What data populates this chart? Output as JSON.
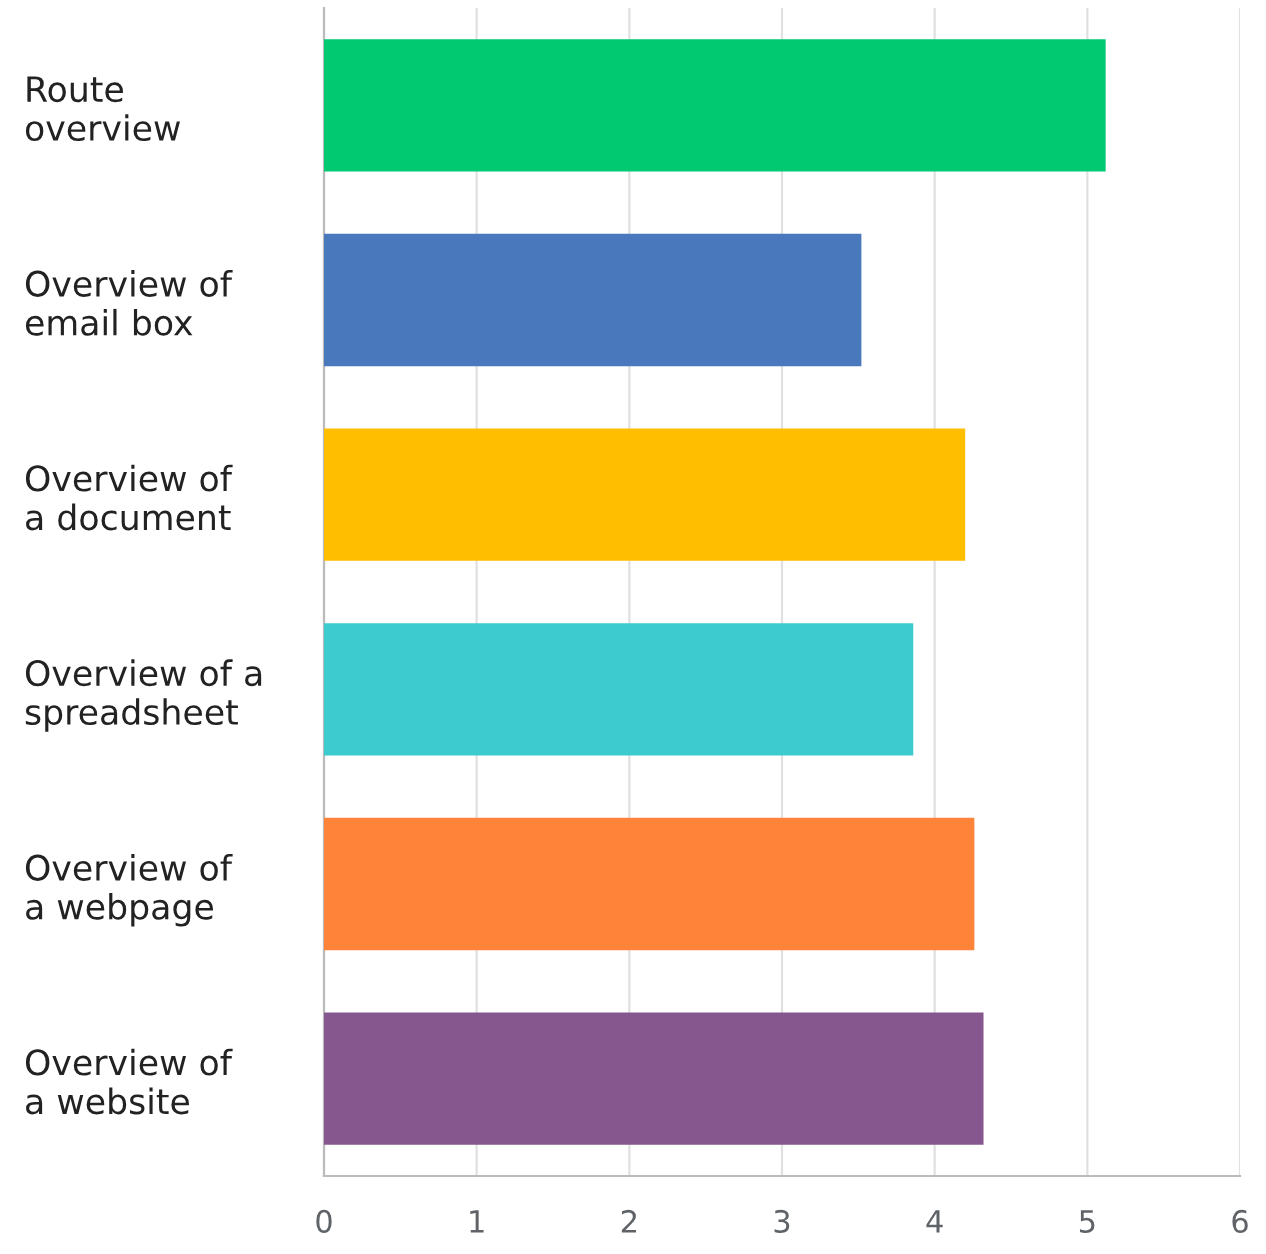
{
  "chart_data": {
    "type": "bar",
    "orientation": "horizontal",
    "categories": [
      "Route\noverview",
      "Overview of\nemail box",
      "Overview of\na document",
      "Overview of a\nspreadsheet",
      "Overview of\na webpage",
      "Overview of\na website"
    ],
    "values": [
      5.12,
      3.52,
      4.2,
      3.86,
      4.26,
      4.32
    ],
    "colors": [
      "#00c972",
      "#4a78bd",
      "#ffbe00",
      "#3ecbd0",
      "#ff8339",
      "#86578f"
    ],
    "xlim": [
      0,
      6
    ],
    "xticks": [
      0,
      1,
      2,
      3,
      4,
      5,
      6
    ],
    "grid": "x"
  }
}
